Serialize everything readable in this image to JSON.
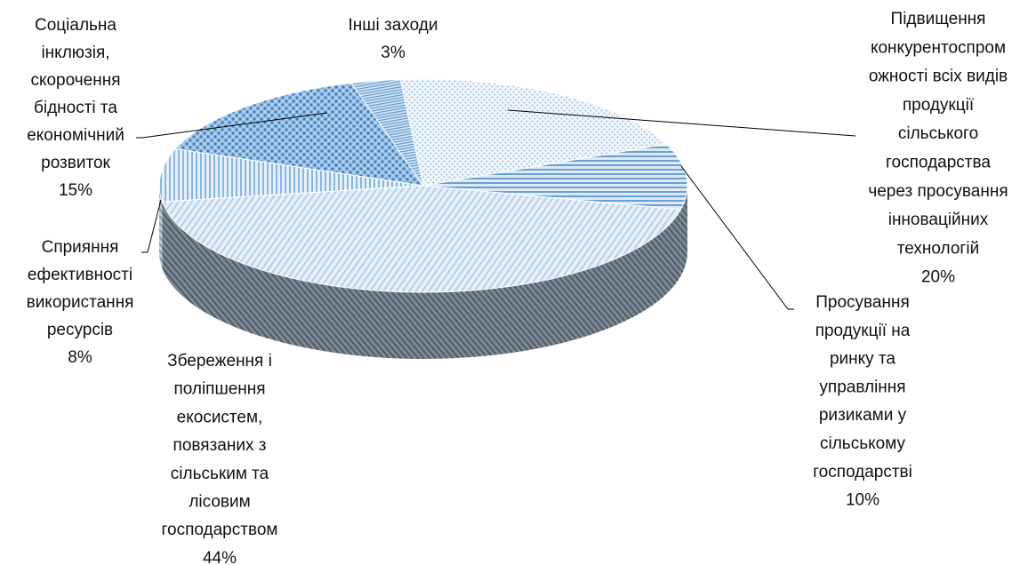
{
  "chart_data": {
    "type": "pie",
    "title": "",
    "style": "3d-exploded-patterned",
    "slices": [
      {
        "label": "Підвищення конкурентоспроможності всіх видів продукції сільського господарства через просування інноваційних технологій",
        "value": 20,
        "value_label": "20%"
      },
      {
        "label": "Просування продукції на ринку та управління ризиками у сільському господарстві",
        "value": 10,
        "value_label": "10%"
      },
      {
        "label": "Збереження і поліпшення екосистем, повязаних з сільським та лісовим господарством",
        "value": 44,
        "value_label": "44%"
      },
      {
        "label": "Сприяння ефективності використання ресурсів",
        "value": 8,
        "value_label": "8%"
      },
      {
        "label": "Соціальна інклюзія, скорочення бідності та економічний розвиток",
        "value": 15,
        "value_label": "15%"
      },
      {
        "label": "Інші заходи",
        "value": 3,
        "value_label": "3%"
      }
    ],
    "label_lines": [
      [
        "Підвищення",
        "конкурентоспром",
        "ожності всіх видів",
        "продукції",
        "сільського",
        "господарства",
        "через просування",
        "інноваційних",
        "технологій",
        "20%"
      ],
      [
        "Просування",
        "продукції на",
        "ринку та",
        "управління",
        "ризиками у",
        "сільському",
        "господарстві",
        "10%"
      ],
      [
        "Збереження і",
        "поліпшення",
        "екосистем,",
        "повязаних з",
        "сільським та",
        "лісовим",
        "господарством",
        "44%"
      ],
      [
        "Сприяння",
        "ефективності",
        "використання",
        "ресурсів",
        "8%"
      ],
      [
        "Соціальна",
        "інклюзія,",
        "скорочення",
        "бідності та",
        "економічний",
        "розвиток",
        "15%"
      ],
      [
        "Інші заходи",
        "3%"
      ]
    ],
    "colors": {
      "top_light": "#e3eef8",
      "top_mid": "#bcd6ee",
      "top_strong": "#7aaad8",
      "side_dark": "#6f7d8a",
      "side_light": "#b9c4ce"
    }
  }
}
